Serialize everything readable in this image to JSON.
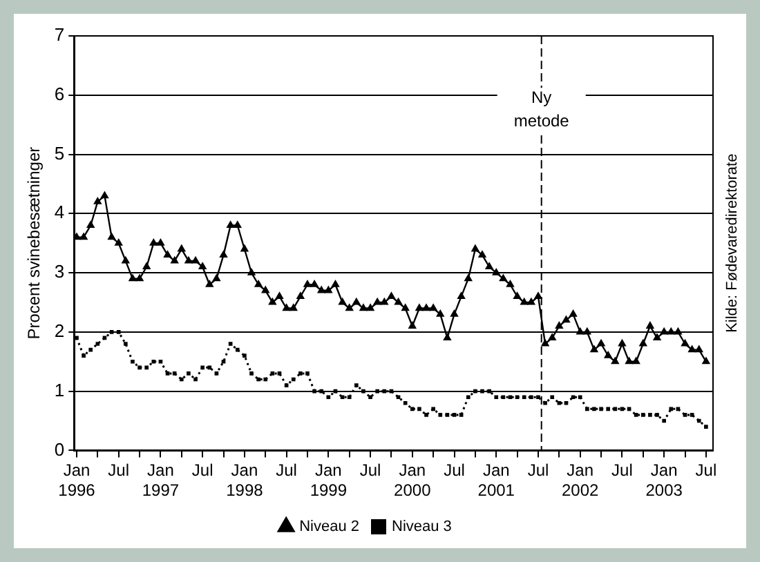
{
  "chart_data": {
    "type": "line",
    "ylabel": "Procent svinebesætninger",
    "annotations": [
      "Kilde: Fødevaredirektorate"
    ],
    "xlim": [
      "1995-12-20",
      "2003-08-01"
    ],
    "ylim": [
      0,
      7
    ],
    "yticks": [
      0,
      1,
      2,
      3,
      4,
      5,
      6,
      7
    ],
    "xticks": [
      {
        "value": "1996-01",
        "label": "Jan 1996"
      },
      {
        "value": "1996-04",
        "label": null
      },
      {
        "value": "1996-07",
        "label": "Jul"
      },
      {
        "value": "1996-10",
        "label": null
      },
      {
        "value": "1997-01",
        "label": "Jan 1997"
      },
      {
        "value": "1997-04",
        "label": null
      },
      {
        "value": "1997-07",
        "label": "Jul"
      },
      {
        "value": "1997-10",
        "label": null
      },
      {
        "value": "1998-01",
        "label": "Jan 1998"
      },
      {
        "value": "1998-04",
        "label": null
      },
      {
        "value": "1998-07",
        "label": "Jul"
      },
      {
        "value": "1998-10",
        "label": null
      },
      {
        "value": "1999-01",
        "label": "Jan 1999"
      },
      {
        "value": "1999-04",
        "label": null
      },
      {
        "value": "1999-07",
        "label": "Jul"
      },
      {
        "value": "1999-10",
        "label": null
      },
      {
        "value": "2000-01",
        "label": "Jan 2000"
      },
      {
        "value": "2000-04",
        "label": null
      },
      {
        "value": "2000-07",
        "label": "Jul"
      },
      {
        "value": "2000-10",
        "label": null
      },
      {
        "value": "2001-01",
        "label": "Jan 2001"
      },
      {
        "value": "2001-04",
        "label": null
      },
      {
        "value": "2001-07",
        "label": "Jul"
      },
      {
        "value": "2001-10",
        "label": null
      },
      {
        "value": "2002-01",
        "label": "Jan 2002"
      },
      {
        "value": "2002-04",
        "label": null
      },
      {
        "value": "2002-07",
        "label": "Jul"
      },
      {
        "value": "2002-10",
        "label": null
      },
      {
        "value": "2003-01",
        "label": "Jan 2003"
      },
      {
        "value": "2003-04",
        "label": null
      },
      {
        "value": "2003-07",
        "label": "Jul"
      }
    ],
    "x": [
      "1996-01",
      "1996-02",
      "1996-03",
      "1996-04",
      "1996-05",
      "1996-06",
      "1996-07",
      "1996-08",
      "1996-09",
      "1996-10",
      "1996-11",
      "1996-12",
      "1997-01",
      "1997-02",
      "1997-03",
      "1997-04",
      "1997-05",
      "1997-06",
      "1997-07",
      "1997-08",
      "1997-09",
      "1997-10",
      "1997-11",
      "1997-12",
      "1998-01",
      "1998-02",
      "1998-03",
      "1998-04",
      "1998-05",
      "1998-06",
      "1998-07",
      "1998-08",
      "1998-09",
      "1998-10",
      "1998-11",
      "1998-12",
      "1999-01",
      "1999-02",
      "1999-03",
      "1999-04",
      "1999-05",
      "1999-06",
      "1999-07",
      "1999-08",
      "1999-09",
      "1999-10",
      "1999-11",
      "1999-12",
      "2000-01",
      "2000-02",
      "2000-03",
      "2000-04",
      "2000-05",
      "2000-06",
      "2000-07",
      "2000-08",
      "2000-09",
      "2000-10",
      "2000-11",
      "2000-12",
      "2001-01",
      "2001-02",
      "2001-03",
      "2001-04",
      "2001-05",
      "2001-06",
      "2001-07",
      "2001-08",
      "2001-09",
      "2001-10",
      "2001-11",
      "2001-12",
      "2002-01",
      "2002-02",
      "2002-03",
      "2002-04",
      "2002-05",
      "2002-06",
      "2002-07",
      "2002-08",
      "2002-09",
      "2002-10",
      "2002-11",
      "2002-12",
      "2003-01",
      "2003-02",
      "2003-03",
      "2003-04",
      "2003-05",
      "2003-06",
      "2003-07"
    ],
    "series": [
      {
        "name": "Niveau 2",
        "color": "#000000",
        "marker": "triangle",
        "line_style": "solid",
        "values": [
          3.6,
          3.6,
          3.8,
          4.2,
          4.3,
          3.6,
          3.5,
          3.2,
          2.9,
          2.9,
          3.1,
          3.5,
          3.5,
          3.3,
          3.2,
          3.4,
          3.2,
          3.2,
          3.1,
          2.8,
          2.9,
          3.3,
          3.8,
          3.8,
          3.4,
          3.0,
          2.8,
          2.7,
          2.5,
          2.6,
          2.4,
          2.4,
          2.6,
          2.8,
          2.8,
          2.7,
          2.7,
          2.8,
          2.5,
          2.4,
          2.5,
          2.4,
          2.4,
          2.5,
          2.5,
          2.6,
          2.5,
          2.4,
          2.1,
          2.4,
          2.4,
          2.4,
          2.3,
          1.9,
          2.3,
          2.6,
          2.9,
          3.4,
          3.3,
          3.1,
          3.0,
          2.9,
          2.8,
          2.6,
          2.5,
          2.5,
          2.6,
          1.8,
          1.9,
          2.1,
          2.2,
          2.3,
          2.0,
          2.0,
          1.7,
          1.8,
          1.6,
          1.5,
          1.8,
          1.5,
          1.5,
          1.8,
          2.1,
          1.9,
          2.0,
          2.0,
          2.0,
          1.8,
          1.7,
          1.7,
          1.5
        ]
      },
      {
        "name": "Niveau 3",
        "color": "#000000",
        "marker": "square",
        "line_style": "dotted",
        "values": [
          1.9,
          1.6,
          1.7,
          1.8,
          1.9,
          2.0,
          2.0,
          1.8,
          1.5,
          1.4,
          1.4,
          1.5,
          1.5,
          1.3,
          1.3,
          1.2,
          1.3,
          1.2,
          1.4,
          1.4,
          1.3,
          1.5,
          1.8,
          1.7,
          1.6,
          1.3,
          1.2,
          1.2,
          1.3,
          1.3,
          1.1,
          1.2,
          1.3,
          1.3,
          1.0,
          1.0,
          0.9,
          1.0,
          0.9,
          0.9,
          1.1,
          1.0,
          0.9,
          1.0,
          1.0,
          1.0,
          0.9,
          0.8,
          0.7,
          0.7,
          0.6,
          0.7,
          0.6,
          0.6,
          0.6,
          0.6,
          0.9,
          1.0,
          1.0,
          1.0,
          0.9,
          0.9,
          0.9,
          0.9,
          0.9,
          0.9,
          0.9,
          0.8,
          0.9,
          0.8,
          0.8,
          0.9,
          0.9,
          0.7,
          0.7,
          0.7,
          0.7,
          0.7,
          0.7,
          0.7,
          0.6,
          0.6,
          0.6,
          0.6,
          0.5,
          0.7,
          0.7,
          0.6,
          0.6,
          0.5,
          0.4
        ]
      }
    ],
    "ref_lines": [
      {
        "axis": "x",
        "value": "2001-07-15",
        "label": "Ny metode",
        "color": "#000000",
        "line_style": "dashed"
      }
    ],
    "grid": "y",
    "legend": "bottom"
  }
}
